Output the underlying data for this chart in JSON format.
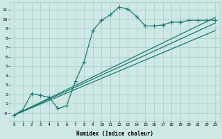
{
  "line1_x": [
    0,
    1,
    2,
    3,
    4,
    5,
    6,
    7,
    8,
    9,
    10,
    11,
    12,
    13,
    14,
    15,
    16,
    17,
    18,
    19,
    20,
    21,
    22,
    23
  ],
  "line1_y": [
    -0.2,
    0.4,
    2.1,
    1.9,
    1.7,
    0.5,
    0.8,
    3.4,
    5.5,
    8.8,
    9.9,
    10.5,
    11.3,
    11.1,
    10.3,
    9.3,
    9.3,
    9.4,
    9.7,
    9.7,
    9.9,
    9.9,
    9.9,
    9.9
  ],
  "line2_x": [
    0,
    23
  ],
  "line2_y": [
    -0.2,
    9.6
  ],
  "line3_x": [
    0,
    23
  ],
  "line3_y": [
    -0.2,
    8.8
  ],
  "line4_x": [
    0,
    23
  ],
  "line4_y": [
    -0.2,
    10.2
  ],
  "bg_color": "#cde8e5",
  "grid_color": "#a8cbc8",
  "line_color": "#1a7a70",
  "xlabel": "Humidex (Indice chaleur)",
  "xlim": [
    -0.5,
    23.5
  ],
  "ylim": [
    -0.8,
    11.8
  ],
  "xticks": [
    0,
    1,
    2,
    3,
    4,
    5,
    6,
    7,
    8,
    9,
    10,
    11,
    12,
    13,
    14,
    15,
    16,
    17,
    18,
    19,
    20,
    21,
    22,
    23
  ],
  "yticks": [
    0,
    1,
    2,
    3,
    4,
    5,
    6,
    7,
    8,
    9,
    10,
    11
  ],
  "ytick_labels": [
    "-0",
    "1",
    "2",
    "3",
    "4",
    "5",
    "6",
    "7",
    "8",
    "9",
    "10",
    "11"
  ],
  "marker": "+",
  "markersize": 4,
  "markeredgewidth": 0.8,
  "linewidth": 0.9,
  "xlabel_fontsize": 5.5,
  "tick_fontsize": 4.2
}
